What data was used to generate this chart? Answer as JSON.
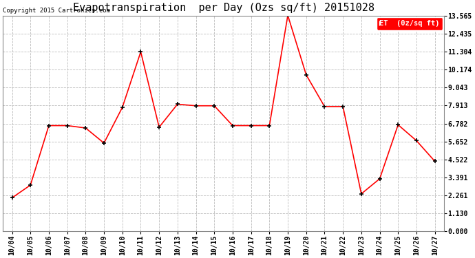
{
  "title": "Evapotranspiration  per Day (Ozs sq/ft) 20151028",
  "copyright": "Copyright 2015 Cartronics.com",
  "legend_label": "ET  (0z/sq ft)",
  "x_labels": [
    "10/04",
    "10/05",
    "10/06",
    "10/07",
    "10/08",
    "10/09",
    "10/10",
    "10/11",
    "10/12",
    "10/13",
    "10/14",
    "10/15",
    "10/16",
    "10/17",
    "10/18",
    "10/19",
    "10/20",
    "10/21",
    "10/22",
    "10/23",
    "10/24",
    "10/25",
    "10/26",
    "10/27"
  ],
  "y_values": [
    2.1,
    2.9,
    6.65,
    6.65,
    6.5,
    5.55,
    7.8,
    11.3,
    6.55,
    8.0,
    7.9,
    7.9,
    6.65,
    6.65,
    6.65,
    13.6,
    9.85,
    7.85,
    7.85,
    2.35,
    3.3,
    6.7,
    5.7,
    4.4
  ],
  "y_ticks": [
    0.0,
    1.13,
    2.261,
    3.391,
    4.522,
    5.652,
    6.782,
    7.913,
    9.043,
    10.174,
    11.304,
    12.435,
    13.565
  ],
  "y_min": 0.0,
  "y_max": 13.565,
  "line_color": "red",
  "marker_color": "black",
  "background_color": "#ffffff",
  "grid_color": "#bbbbbb",
  "title_fontsize": 11,
  "tick_fontsize": 7,
  "legend_bg_color": "red",
  "legend_text_color": "white"
}
